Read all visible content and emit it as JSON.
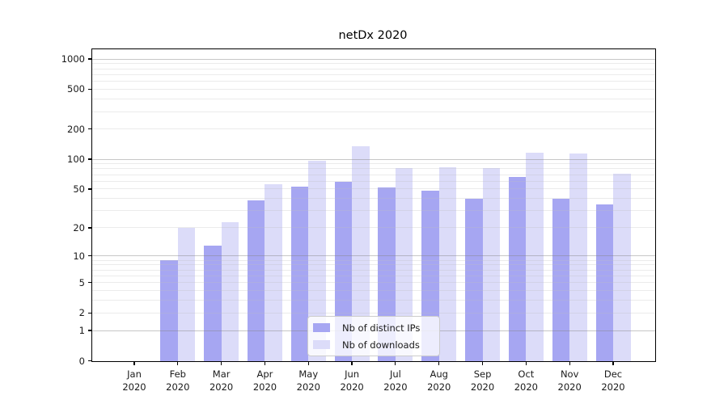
{
  "chart_data": {
    "type": "bar",
    "title": "netDx 2020",
    "categories": [
      "Jan",
      "Feb",
      "Mar",
      "Apr",
      "May",
      "Jun",
      "Jul",
      "Aug",
      "Sep",
      "Oct",
      "Nov",
      "Dec"
    ],
    "category_year": "2020",
    "series": [
      {
        "name": "Nb of distinct IPs",
        "color": "#a6a6f2",
        "values": [
          0,
          9,
          13,
          38,
          53,
          59,
          52,
          48,
          40,
          66,
          40,
          35
        ]
      },
      {
        "name": "Nb of downloads",
        "color": "#dcdcf9",
        "values": [
          0,
          20,
          23,
          56,
          97,
          135,
          81,
          83,
          82,
          116,
          114,
          72
        ]
      }
    ],
    "y_scale": "log1p",
    "ylim": [
      0,
      1250
    ],
    "y_ticks": [
      0,
      1,
      2,
      5,
      10,
      20,
      50,
      100,
      200,
      500,
      1000
    ],
    "y_gridlines_major": [
      1,
      10,
      100,
      1000
    ],
    "y_gridlines_minor": [
      2,
      3,
      4,
      5,
      6,
      7,
      8,
      9,
      20,
      30,
      40,
      50,
      60,
      70,
      80,
      90,
      200,
      300,
      400,
      500,
      600,
      700,
      800,
      900
    ],
    "grid": true,
    "legend_position": "lower center",
    "xlabel": "",
    "ylabel": ""
  }
}
